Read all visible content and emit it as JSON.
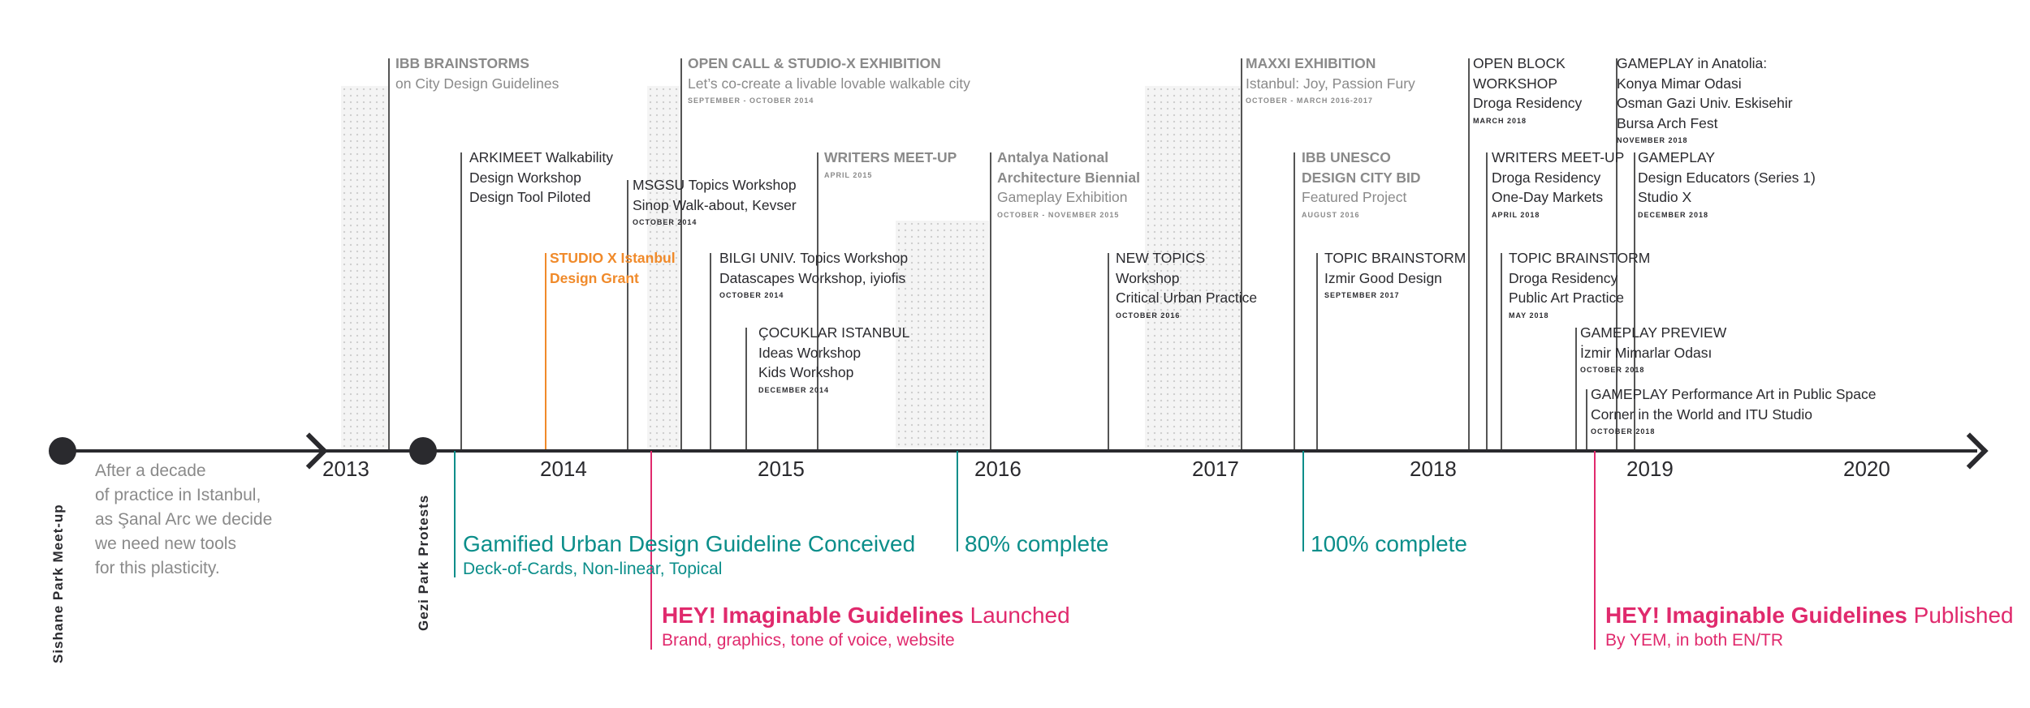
{
  "colors": {
    "axis": "#2a2a2e",
    "gray": "#8a8a8a",
    "teal": "#0b8e8a",
    "pink": "#e02a6d",
    "orange": "#f08a2a"
  },
  "years": [
    "2013",
    "2014",
    "2015",
    "2016",
    "2017",
    "2018",
    "2019",
    "2020"
  ],
  "start": {
    "label": "Sishane Park Meet-up",
    "note": [
      "After a decade",
      "of practice in Istanbul,",
      "as Şanal Arc we decide",
      "we need new tools",
      "for this plasticity."
    ]
  },
  "gezi": {
    "label": "Gezi Park Protests"
  },
  "events": {
    "ibb_brainstorms": {
      "title": "IBB BRAINSTORMS",
      "sub": "on City Design Guidelines"
    },
    "open_call": {
      "title": "OPEN CALL & STUDIO-X EXHIBITION",
      "sub": "Let’s co-create a livable lovable walkable city",
      "date": "SEPTEMBER - OCTOBER 2014"
    },
    "maxxi": {
      "title": "MAXXI EXHIBITION",
      "sub": "Istanbul: Joy, Passion Fury",
      "date": "OCTOBER - MARCH 2016-2017"
    },
    "open_block": {
      "lines": [
        "OPEN BLOCK",
        "WORKSHOP",
        "Droga Residency"
      ],
      "date": "MARCH 2018"
    },
    "gameplay_anatolia": {
      "lines": [
        "GAMEPLAY in Anatolia:",
        "Konya Mimar Odasi",
        "Osman Gazi Univ. Eskisehir",
        "Bursa Arch Fest"
      ],
      "date": "NOVEMBER 2018"
    },
    "arkimeet": {
      "lines": [
        "ARKIMEET Walkability",
        "Design Workshop",
        "Design Tool Piloted"
      ]
    },
    "msgsu": {
      "lines": [
        "MSGSU Topics Workshop",
        "Sinop Walk-about, Kevser"
      ],
      "date": "OCTOBER 2014"
    },
    "writers1": {
      "title": "WRITERS MEET-UP",
      "date": "APRIL 2015"
    },
    "antalya": {
      "title1": "Antalya National",
      "title2": "Architecture Biennial",
      "sub": "Gameplay Exhibition",
      "date": "OCTOBER - NOVEMBER 2015"
    },
    "unesco": {
      "title1": "IBB UNESCO",
      "title2": "DESIGN CITY BID",
      "sub": "Featured Project",
      "date": "AUGUST 2016"
    },
    "writers2": {
      "lines": [
        "WRITERS MEET-UP",
        "Droga Residency",
        "One-Day Markets"
      ],
      "date": "APRIL 2018"
    },
    "gameplay_educators": {
      "lines": [
        "GAMEPLAY",
        "Design Educators (Series 1)",
        "Studio X"
      ],
      "date": "DECEMBER 2018"
    },
    "studiox": {
      "lines": [
        "STUDIO X Istanbul",
        "Design Grant"
      ]
    },
    "bilgi": {
      "lines": [
        "BILGI UNIV. Topics Workshop",
        "Datascapes Workshop, iyiofis"
      ],
      "date": "OCTOBER 2014"
    },
    "new_topics": {
      "lines": [
        "NEW TOPICS",
        "Workshop",
        "Critical Urban Practice"
      ],
      "date": "OCTOBER 2016"
    },
    "topic_izmir": {
      "lines": [
        "TOPIC BRAINSTORM",
        "Izmir Good Design"
      ],
      "date": "SEPTEMBER 2017"
    },
    "topic_droga": {
      "lines": [
        "TOPIC BRAINSTORM",
        "Droga Residency",
        "Public Art Practice"
      ],
      "date": "MAY 2018"
    },
    "cocuklar": {
      "lines": [
        "ÇOCUKLAR ISTANBUL",
        "Ideas Workshop",
        "Kids Workshop"
      ],
      "date": "DECEMBER 2014"
    },
    "gameplay_preview": {
      "lines": [
        "GAMEPLAY PREVIEW",
        "İzmir Mimarlar Odası"
      ],
      "date": "OCTOBER 2018"
    },
    "gameplay_perf": {
      "lines": [
        "GAMEPLAY Performance Art in Public Space",
        "Corner in the World and ITU Studio"
      ],
      "date": "OCTOBER 2018"
    }
  },
  "milestones": {
    "conceived": {
      "title": "Gamified Urban Design Guideline Conceived",
      "sub": "Deck-of-Cards, Non-linear, Topical"
    },
    "p80": {
      "title": "80% complete"
    },
    "p100": {
      "title": "100% complete"
    },
    "launched": {
      "bold": "HEY! Imaginable Guidelines",
      "rest": " Launched",
      "sub": "Brand, graphics, tone of voice, website"
    },
    "published": {
      "bold": "HEY! Imaginable Guidelines",
      "rest": " Published",
      "sub": "By YEM, in both EN/TR"
    }
  }
}
